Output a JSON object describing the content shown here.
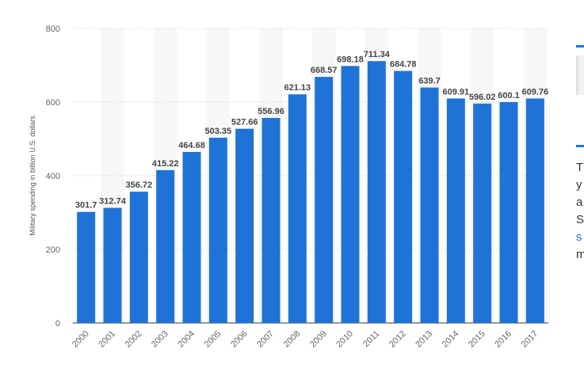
{
  "chart_data": {
    "type": "bar",
    "title": "",
    "xlabel": "",
    "ylabel": "Military spending in billion U.S. dollars",
    "ylim": [
      0,
      800
    ],
    "yticks": [
      "0",
      "200",
      "400",
      "600",
      "800"
    ],
    "grid": true,
    "categories": [
      "2000",
      "2001",
      "2002",
      "2003",
      "2004",
      "2005",
      "2006",
      "2007",
      "2008",
      "2009",
      "2010",
      "2011",
      "2012",
      "2013",
      "2014",
      "2015",
      "2016",
      "2017"
    ],
    "values": [
      301.7,
      312.74,
      356.72,
      415.22,
      464.68,
      503.35,
      527.66,
      556.96,
      621.13,
      668.57,
      698.18,
      711.34,
      684.78,
      639.7,
      609.91,
      596.02,
      600.1,
      609.76
    ],
    "labels": [
      "301.7",
      "312.74",
      "356.72",
      "415.22",
      "464.68",
      "503.35",
      "527.66",
      "556.96",
      "621.13",
      "668.57",
      "698.18",
      "711.34",
      "684.78",
      "639.7",
      "609.91",
      "596.02",
      "600.1",
      "609.76"
    ],
    "bar_color": "#1f73d6"
  },
  "sidebar": {
    "text_fragments": [
      "T",
      "y",
      "a",
      "S",
      "s",
      "m"
    ],
    "link_color": "#1f73d6"
  }
}
